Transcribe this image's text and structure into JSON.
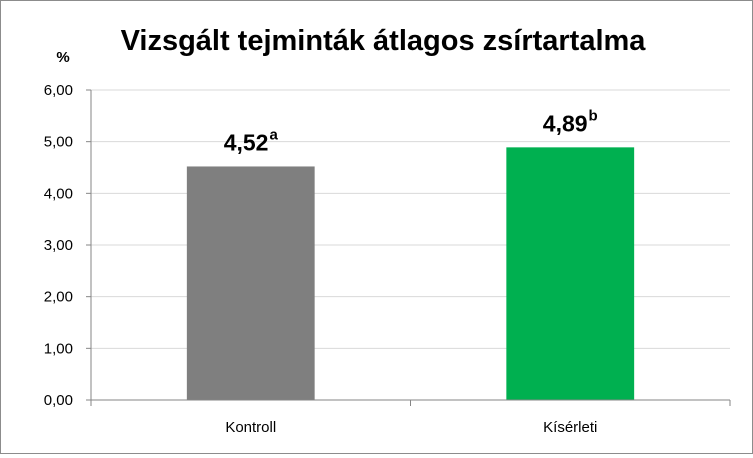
{
  "chart_data": {
    "type": "bar",
    "title": "Vizsgált tejminták átlagos zsírtartalma",
    "ylabel": "%",
    "xlabel": "",
    "ylim": [
      0,
      6
    ],
    "yticks": [
      "0,00",
      "1,00",
      "2,00",
      "3,00",
      "4,00",
      "5,00",
      "6,00"
    ],
    "grid": true,
    "categories": [
      "Kontroll",
      "Kísérleti"
    ],
    "values": [
      4.52,
      4.89
    ],
    "data_labels": [
      "4,52",
      "4,89"
    ],
    "data_label_superscripts": [
      "a",
      "b"
    ],
    "colors": [
      "#7f7f7f",
      "#00b050"
    ]
  }
}
